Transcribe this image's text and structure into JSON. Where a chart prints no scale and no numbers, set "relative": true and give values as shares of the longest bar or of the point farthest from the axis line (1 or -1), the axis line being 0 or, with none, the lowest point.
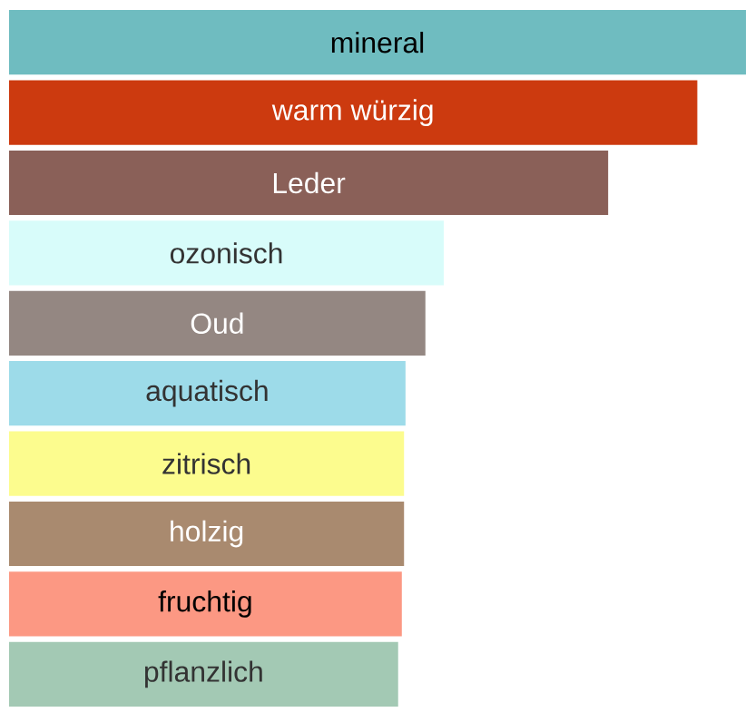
{
  "chart_data": {
    "type": "bar",
    "orientation": "horizontal",
    "relative": true,
    "data_labels": false,
    "categories": [
      "mineral",
      "warm würzig",
      "Leder",
      "ozonisch",
      "Oud",
      "aquatisch",
      "zitrisch",
      "holzig",
      "fruchtig",
      "pflanzlich"
    ],
    "values": [
      1,
      0.934,
      0.813,
      0.59,
      0.565,
      0.538,
      0.536,
      0.536,
      0.533,
      0.528
    ],
    "colors": [
      "#6fbcc0",
      "#cc3a0f",
      "#8a6058",
      "#d8fcfa",
      "#948782",
      "#9ddbe9",
      "#fcfc8e",
      "#a98a6f",
      "#fc9883",
      "#a3c9b4"
    ]
  }
}
